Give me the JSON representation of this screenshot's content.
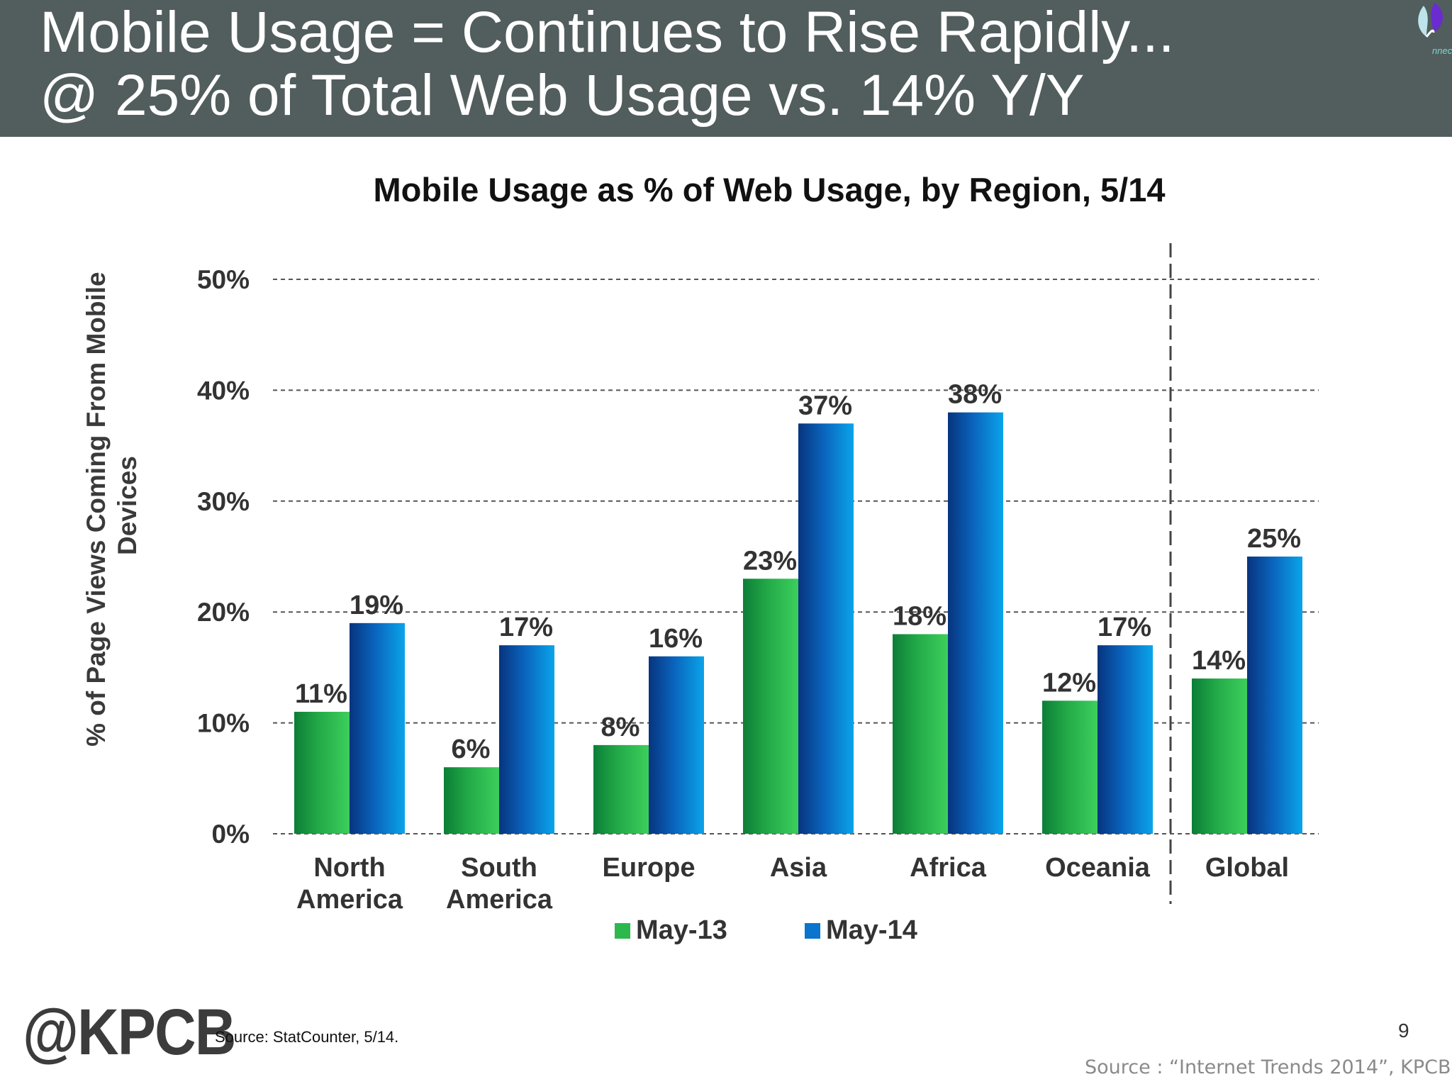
{
  "header": {
    "line1": "Mobile Usage = Continues to Rise Rapidly...",
    "line2": "@ 25% of Total Web Usage vs. 14% Y/Y",
    "logo_icon": "leaf-logo-icon",
    "logo_text": "nnector"
  },
  "chart_data": {
    "type": "bar",
    "title": "Mobile Usage as % of Web Usage, by Region, 5/14",
    "ylabel": "% of Page Views Coming From Mobile Devices",
    "xlabel": "",
    "ylim": [
      0,
      50
    ],
    "yticks": [
      "0%",
      "10%",
      "20%",
      "30%",
      "40%",
      "50%"
    ],
    "ytick_values": [
      0,
      10,
      20,
      30,
      40,
      50
    ],
    "grid": true,
    "legend_position": "bottom",
    "categories": [
      [
        "North",
        "America"
      ],
      [
        "South",
        "America"
      ],
      [
        "Europe"
      ],
      [
        "Asia"
      ],
      [
        "Africa"
      ],
      [
        "Oceania"
      ],
      [
        "Global"
      ]
    ],
    "separator_before_category": 6,
    "series": [
      {
        "name": "May-13",
        "values": [
          11,
          6,
          8,
          23,
          18,
          12,
          14
        ],
        "labels": [
          "11%",
          "6%",
          "8%",
          "23%",
          "18%",
          "12%",
          "14%"
        ],
        "color": "#2db84e"
      },
      {
        "name": "May-14",
        "values": [
          19,
          17,
          16,
          37,
          38,
          17,
          25
        ],
        "labels": [
          "19%",
          "17%",
          "16%",
          "37%",
          "38%",
          "17%",
          "25%"
        ],
        "color": "#0b74cc"
      }
    ]
  },
  "footer": {
    "logo": "@KPCB",
    "source_note": "Source: StatCounter, 5/14.",
    "page_number": "9",
    "credit": "Source : “Internet Trends 2014”, KPCB"
  }
}
